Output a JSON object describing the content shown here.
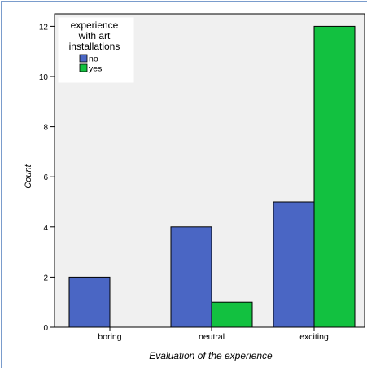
{
  "chart_data": {
    "type": "bar",
    "xlabel": "Evaluation of the experience",
    "ylabel": "Count",
    "categories": [
      "boring",
      "neutral",
      "exciting"
    ],
    "series": [
      {
        "name": "no",
        "values": [
          2,
          4,
          5
        ]
      },
      {
        "name": "yes",
        "values": [
          0,
          1,
          12
        ]
      }
    ],
    "ylim": [
      0,
      12.5
    ],
    "yticks": [
      0,
      2,
      4,
      6,
      8,
      10,
      12
    ],
    "grid": false,
    "legend": {
      "title": "experience with art installations",
      "title_lines": [
        "experience",
        "with art",
        "installations"
      ],
      "placement": "top-left"
    },
    "colors": {
      "no": "#4a66c4",
      "yes": "#12c140",
      "plot_background": "#f0f0f0",
      "frame_border": "#7a9ccc"
    }
  }
}
